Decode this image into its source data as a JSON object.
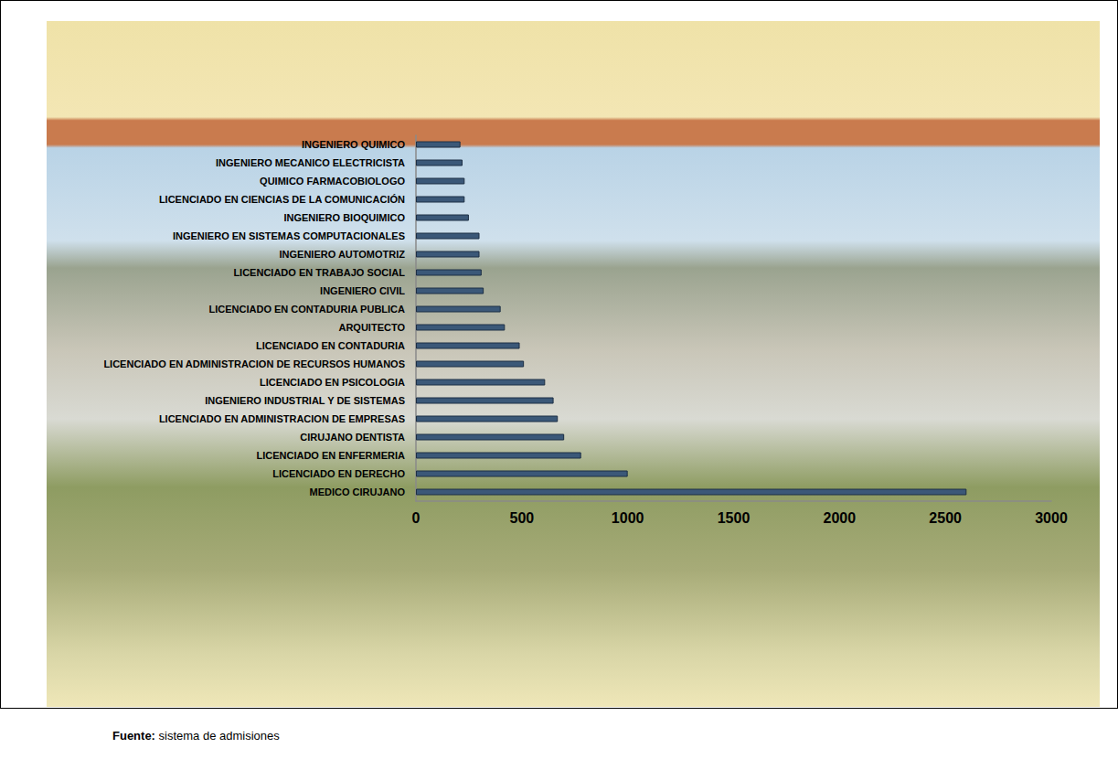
{
  "chart_data": {
    "type": "bar",
    "orientation": "horizontal",
    "categories": [
      "INGENIERO QUIMICO",
      "INGENIERO MECANICO ELECTRICISTA",
      "QUIMICO FARMACOBIOLOGO",
      "LICENCIADO EN CIENCIAS DE LA COMUNICACIÓN",
      "INGENIERO BIOQUIMICO",
      "INGENIERO EN SISTEMAS COMPUTACIONALES",
      "INGENIERO AUTOMOTRIZ",
      "LICENCIADO EN TRABAJO SOCIAL",
      "INGENIERO CIVIL",
      "LICENCIADO EN CONTADURIA PUBLICA",
      "ARQUITECTO",
      "LICENCIADO EN CONTADURIA",
      "LICENCIADO EN ADMINISTRACION DE RECURSOS HUMANOS",
      "LICENCIADO EN PSICOLOGIA",
      "INGENIERO INDUSTRIAL Y DE SISTEMAS",
      "LICENCIADO EN ADMINISTRACION DE EMPRESAS",
      "CIRUJANO DENTISTA",
      "LICENCIADO EN ENFERMERIA",
      "LICENCIADO EN DERECHO",
      "MEDICO CIRUJANO"
    ],
    "values": [
      210,
      220,
      230,
      230,
      250,
      300,
      300,
      310,
      320,
      400,
      420,
      490,
      510,
      610,
      650,
      670,
      700,
      780,
      1000,
      2600
    ],
    "color": "#3b5878",
    "xlim": [
      0,
      3000
    ],
    "xticks": [
      0,
      500,
      1000,
      1500,
      2000,
      2500,
      3000
    ],
    "grid": false,
    "annotations": [
      "Fuente: sistema de admisiones"
    ]
  }
}
